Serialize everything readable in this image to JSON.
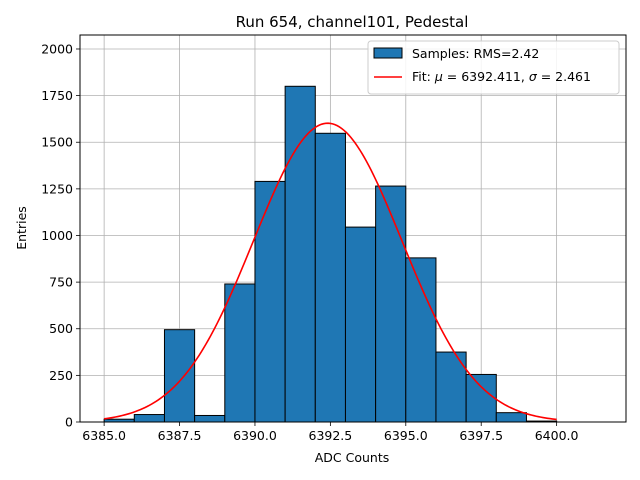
{
  "chart_data": {
    "type": "bar",
    "title": "Run 654, channel101, Pedestal",
    "xlabel": "ADC Counts",
    "ylabel": "Entries",
    "xlim": [
      6384.2,
      6402.3
    ],
    "ylim": [
      0,
      2075
    ],
    "grid": true,
    "legend_position": "top-right",
    "bin_edges": [
      6385,
      6386,
      6387,
      6388,
      6389,
      6390,
      6391,
      6392,
      6393,
      6394,
      6395,
      6396,
      6397,
      6398,
      6399,
      6400
    ],
    "series": [
      {
        "name": "Samples: RMS=2.42",
        "kind": "histogram",
        "color": "#1f77b4",
        "edgecolor": "#000000",
        "values": [
          15,
          40,
          495,
          35,
          740,
          1290,
          1800,
          1548,
          1045,
          1265,
          880,
          375,
          255,
          50,
          5
        ]
      },
      {
        "name": "Fit: μ = 6392.411, σ = 2.461",
        "legend_main": "Fit: ",
        "legend_mu": "μ",
        "legend_mid": " = 6392.411, ",
        "legend_sigma": "σ",
        "legend_end": " = 2.461",
        "kind": "gaussian-fit",
        "color": "#ff0000",
        "mu": 6392.411,
        "sigma": 2.461,
        "amplitude": 1602,
        "x_range": [
          6385,
          6400
        ]
      }
    ],
    "x_ticks": [
      6385.0,
      6387.5,
      6390.0,
      6392.5,
      6395.0,
      6397.5,
      6400.0
    ],
    "x_tick_labels": [
      "6385.0",
      "6387.5",
      "6390.0",
      "6392.5",
      "6395.0",
      "6397.5",
      "6400.0"
    ],
    "y_ticks": [
      0,
      250,
      500,
      750,
      1000,
      1250,
      1500,
      1750,
      2000
    ],
    "y_tick_labels": [
      "0",
      "250",
      "500",
      "750",
      "1000",
      "1250",
      "1500",
      "1750",
      "2000"
    ]
  }
}
